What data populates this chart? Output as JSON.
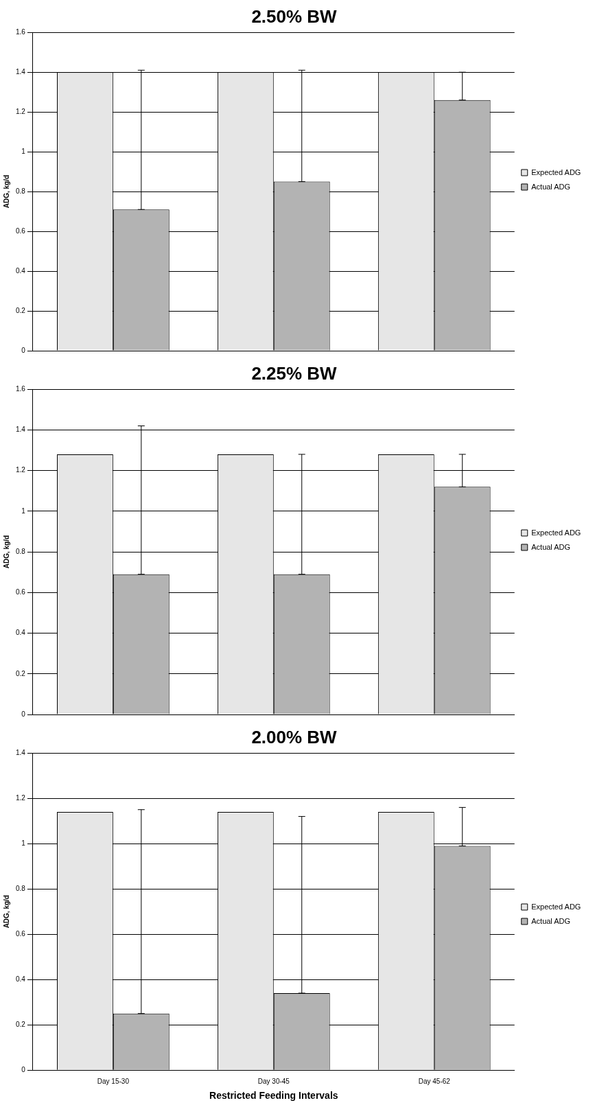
{
  "chart_data": [
    {
      "type": "bar",
      "title": "2.50% BW",
      "ylabel": "ADG, kg/d",
      "categories": [
        null,
        null,
        null
      ],
      "series": [
        {
          "name": "Expected ADG",
          "color": "#e6e6e6",
          "values": [
            1.4,
            1.4,
            1.4
          ]
        },
        {
          "name": "Actual ADG",
          "color": "#b3b3b3",
          "values": [
            0.71,
            0.85,
            1.26
          ],
          "errors": [
            [
              0.71,
              1.41
            ],
            [
              0.85,
              1.41
            ],
            [
              1.26,
              1.4
            ]
          ]
        }
      ],
      "ylim": [
        0,
        1.6
      ],
      "yticks": [
        0,
        0.2,
        0.4,
        0.6,
        0.8,
        1,
        1.2,
        1.4,
        1.6
      ],
      "grid": "y",
      "legend": "right",
      "tick_labels": "y"
    },
    {
      "type": "bar",
      "title": "2.25% BW",
      "ylabel": "ADG, kg/d",
      "categories": [
        null,
        null,
        null
      ],
      "series": [
        {
          "name": "Expected ADG",
          "color": "#e6e6e6",
          "values": [
            1.28,
            1.28,
            1.28
          ]
        },
        {
          "name": "Actual ADG",
          "color": "#b3b3b3",
          "values": [
            0.69,
            0.69,
            1.12
          ],
          "errors": [
            [
              0.69,
              1.42
            ],
            [
              0.69,
              1.28
            ],
            [
              1.12,
              1.28
            ]
          ]
        }
      ],
      "ylim": [
        0,
        1.6
      ],
      "yticks": [
        0,
        0.2,
        0.4,
        0.6,
        0.8,
        1,
        1.2,
        1.4,
        1.6
      ],
      "grid": "y",
      "legend": "right",
      "tick_labels": "y"
    },
    {
      "type": "bar",
      "title": "2.00% BW",
      "ylabel": "ADG, kg/d",
      "xlabel": "Restricted Feeding Intervals",
      "categories": [
        "Day 15-30",
        "Day 30-45",
        "Day 45-62"
      ],
      "series": [
        {
          "name": "Expected ADG",
          "color": "#e6e6e6",
          "values": [
            1.14,
            1.14,
            1.14
          ]
        },
        {
          "name": "Actual ADG",
          "color": "#b3b3b3",
          "values": [
            0.25,
            0.34,
            0.99
          ],
          "errors": [
            [
              0.25,
              1.15
            ],
            [
              0.34,
              1.12
            ],
            [
              0.99,
              1.16
            ]
          ]
        }
      ],
      "ylim": [
        0,
        1.4
      ],
      "yticks": [
        0,
        0.2,
        0.4,
        0.6,
        0.8,
        1,
        1.2,
        1.4
      ],
      "grid": "y",
      "legend": "right"
    }
  ]
}
